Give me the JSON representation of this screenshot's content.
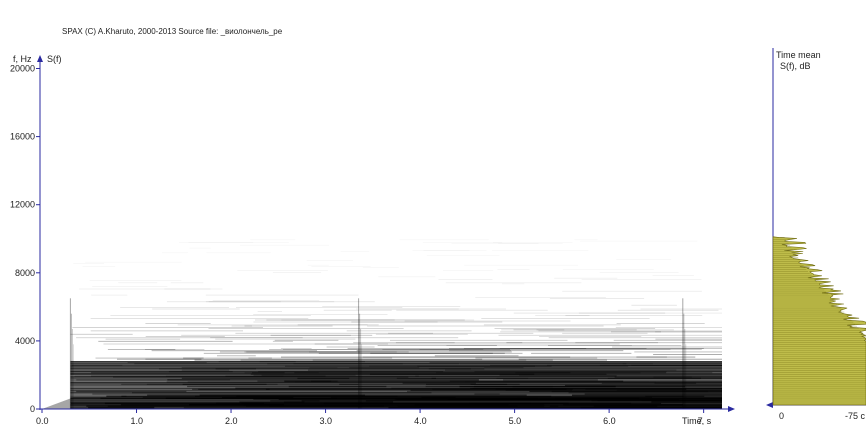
{
  "header": {
    "text": "SPAX  (C)  A.Kharuto,  2000-2013  Source file:  _виолончель_ре"
  },
  "colors": {
    "axis": "#2a2aa0",
    "spectrogram": "#000000",
    "spectrum_fill": "#b3b02a",
    "spectrum_edge": "#6e6a10"
  },
  "chart_data": [
    {
      "type": "heatmap",
      "title": "",
      "ylabel": "f, Hz",
      "zlabel": "S(f)",
      "xlabel": "Time, s",
      "xlim": [
        0,
        7.3
      ],
      "ylim": [
        0,
        20500
      ],
      "x_ticks": [
        {
          "value": 0,
          "label": "0.0"
        },
        {
          "value": 1,
          "label": "1.0"
        },
        {
          "value": 2,
          "label": "2.0"
        },
        {
          "value": 3,
          "label": "3.0"
        },
        {
          "value": 4,
          "label": "4.0"
        },
        {
          "value": 5,
          "label": "5.0"
        },
        {
          "value": 6,
          "label": "6.0"
        },
        {
          "value": 7,
          "label": "7"
        }
      ],
      "y_ticks": [
        {
          "value": 0,
          "label": "0"
        },
        {
          "value": 4000,
          "label": "4000"
        },
        {
          "value": 8000,
          "label": "8000"
        },
        {
          "value": 12000,
          "label": "12000"
        },
        {
          "value": 16000,
          "label": "16000"
        },
        {
          "value": 20000,
          "label": "20000"
        }
      ],
      "note_onsets_s": [
        0.3,
        3.35,
        6.78
      ],
      "energy_upper_limit_hz": 10000,
      "fundamental_hz": 294
    },
    {
      "type": "area",
      "title": "Time mean",
      "ylabel": "S(f), dB",
      "x_ticks": [
        {
          "value": 0,
          "label": "0"
        },
        {
          "value": -75,
          "label": "-75 c"
        }
      ],
      "ylim": [
        0,
        20500
      ],
      "spectrum_points": [
        {
          "f": 0,
          "db": -6
        },
        {
          "f": 300,
          "db": -4
        },
        {
          "f": 1000,
          "db": -12
        },
        {
          "f": 2000,
          "db": -20
        },
        {
          "f": 3000,
          "db": -30
        },
        {
          "f": 4000,
          "db": -38
        },
        {
          "f": 5000,
          "db": -46
        },
        {
          "f": 6000,
          "db": -54
        },
        {
          "f": 7000,
          "db": -62
        },
        {
          "f": 8000,
          "db": -70
        },
        {
          "f": 9000,
          "db": -76
        },
        {
          "f": 10000,
          "db": -82
        }
      ]
    }
  ]
}
